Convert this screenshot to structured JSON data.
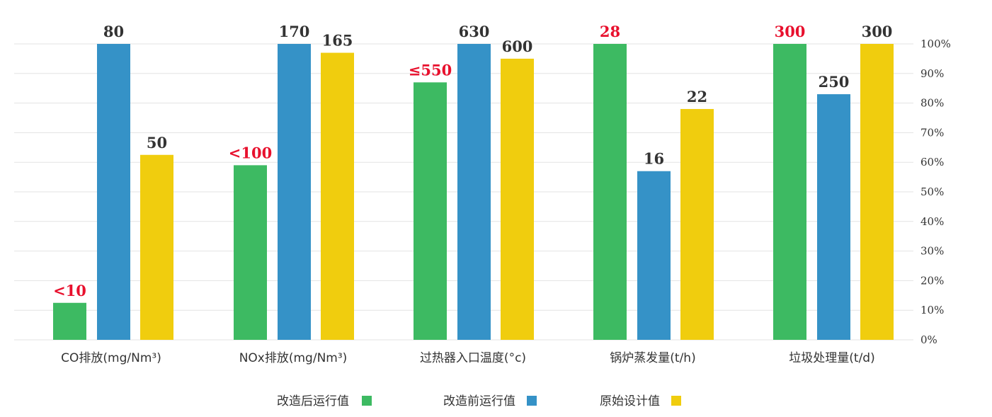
{
  "chart_data": {
    "type": "bar",
    "orientation": "vertical, mirrored (y-axis on right, categories right-to-left)",
    "categories": [
      "垃圾处理量(t/d)",
      "锅炉蒸发量(t/h)",
      "过热器入口温度(°c)",
      "NOx排放(mg/Nm³)",
      "CO排放(mg/Nm³)"
    ],
    "ylim": [
      0,
      100
    ],
    "yticks": [
      "0%",
      "10%",
      "20%",
      "30%",
      "40%",
      "50%",
      "60%",
      "70%",
      "80%",
      "90%",
      "100%"
    ],
    "grid": true,
    "legend_position": "bottom",
    "series": [
      {
        "name": "原始设计值",
        "color": "#f0cd0e",
        "values": [
          100,
          78,
          95,
          97,
          62.5
        ],
        "data_labels": [
          "300",
          "22",
          "600",
          "165",
          "50"
        ],
        "label_colors": [
          "#333333",
          "#333333",
          "#333333",
          "#333333",
          "#333333"
        ]
      },
      {
        "name": "改造前运行值",
        "color": "#3592c7",
        "values": [
          83,
          57,
          100,
          100,
          100
        ],
        "data_labels": [
          "250",
          "16",
          "630",
          "170",
          "80"
        ],
        "label_colors": [
          "#333333",
          "#333333",
          "#333333",
          "#333333",
          "#333333"
        ]
      },
      {
        "name": "改造后运行值",
        "color": "#3dba62",
        "values": [
          100,
          100,
          87,
          59,
          12.5
        ],
        "data_labels": [
          "300",
          "28",
          "≤550",
          "<100",
          "<10"
        ],
        "label_colors": [
          "#e8102d",
          "#e8102d",
          "#e8102d",
          "#e8102d",
          "#e8102d"
        ]
      }
    ]
  }
}
